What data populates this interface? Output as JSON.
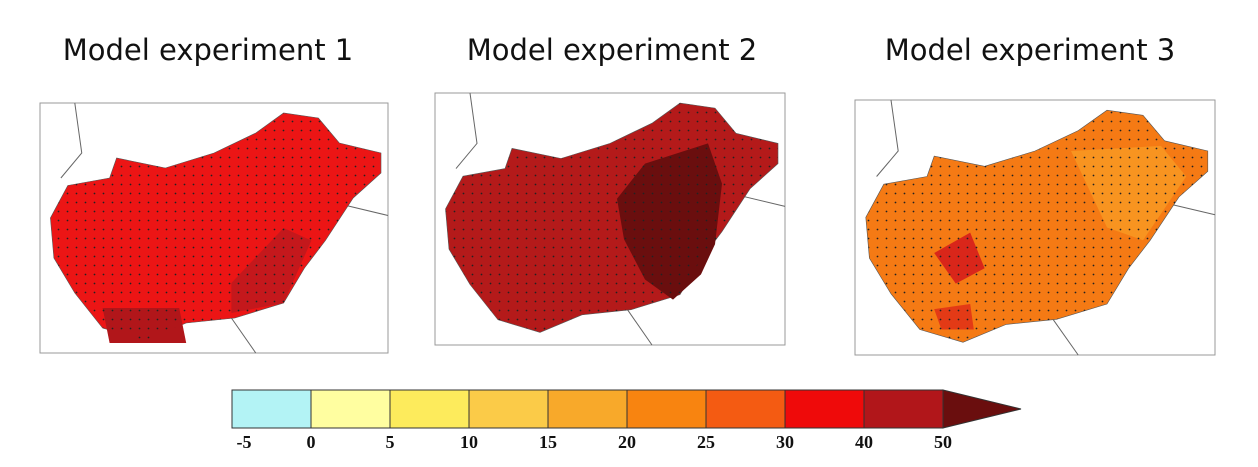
{
  "panels": [
    {
      "title": "Model experiment 1"
    },
    {
      "title": "Model experiment 2"
    },
    {
      "title": "Model experiment 3"
    }
  ],
  "colorbar": {
    "labels": [
      -5,
      0,
      5,
      10,
      15,
      20,
      25,
      30,
      40,
      50
    ],
    "colors": [
      "#b3f3f5",
      "#fffea0",
      "#fdeb5c",
      "#fbcb48",
      "#f8a92a",
      "#f88410",
      "#f45b12",
      "#ef0a0a",
      "#b1161a",
      "#6a0e0e"
    ]
  }
}
